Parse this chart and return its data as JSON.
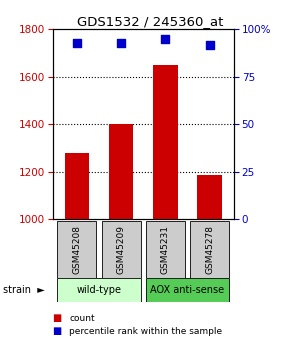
{
  "title": "GDS1532 / 245360_at",
  "samples": [
    "GSM45208",
    "GSM45209",
    "GSM45231",
    "GSM45278"
  ],
  "counts": [
    1280,
    1400,
    1650,
    1185
  ],
  "percentiles": [
    93,
    93,
    95,
    92
  ],
  "ylim_left": [
    1000,
    1800
  ],
  "ylim_right": [
    0,
    100
  ],
  "yticks_left": [
    1000,
    1200,
    1400,
    1600,
    1800
  ],
  "yticks_right": [
    0,
    25,
    50,
    75,
    100
  ],
  "ytick_labels_right": [
    "0",
    "25",
    "50",
    "75",
    "100%"
  ],
  "bar_color": "#cc0000",
  "dot_color": "#0000cc",
  "groups": [
    {
      "label": "wild-type",
      "samples": [
        0,
        1
      ],
      "color": "#ccffcc"
    },
    {
      "label": "AOX anti-sense",
      "samples": [
        2,
        3
      ],
      "color": "#55cc55"
    }
  ],
  "left_tick_color": "#cc0000",
  "right_tick_color": "#0000cc",
  "grid_color": "#000000",
  "plot_bg_color": "#ffffff",
  "sample_box_color": "#cccccc",
  "legend_count_color": "#cc0000",
  "legend_pct_color": "#0000cc",
  "bar_width": 0.55,
  "dot_size": 40,
  "gridlines": [
    1200,
    1400,
    1600
  ]
}
